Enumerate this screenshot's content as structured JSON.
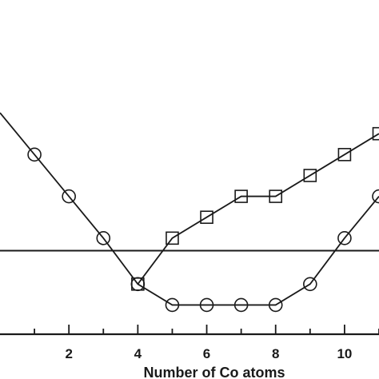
{
  "chart_data": {
    "type": "line",
    "xlabel": "Number of Co atoms",
    "ylabel": "",
    "xlim": [
      0,
      11
    ],
    "ylim": [
      -2.0,
      6.0
    ],
    "x_ticks": [
      2,
      4,
      6,
      8,
      10
    ],
    "x_tick_labels": [
      "2",
      "4",
      "6",
      "8",
      "10"
    ],
    "reference_line_y": 0,
    "grid": false,
    "legend": "none",
    "series": [
      {
        "marker": "square",
        "color": "#1a1a1a",
        "x": [
          4,
          5,
          6,
          7,
          8,
          9,
          10,
          11
        ],
        "y": [
          -0.8,
          0.3,
          0.8,
          1.3,
          1.3,
          1.8,
          2.3,
          2.8
        ]
      },
      {
        "marker": "circle",
        "color": "#1a1a1a",
        "x": [
          0,
          1,
          2,
          3,
          4,
          5,
          6,
          7,
          8,
          9,
          10,
          11
        ],
        "y": [
          3.3,
          2.3,
          1.3,
          0.3,
          -0.8,
          -1.3,
          -1.3,
          -1.3,
          -1.3,
          -0.8,
          0.3,
          1.3
        ]
      }
    ]
  }
}
